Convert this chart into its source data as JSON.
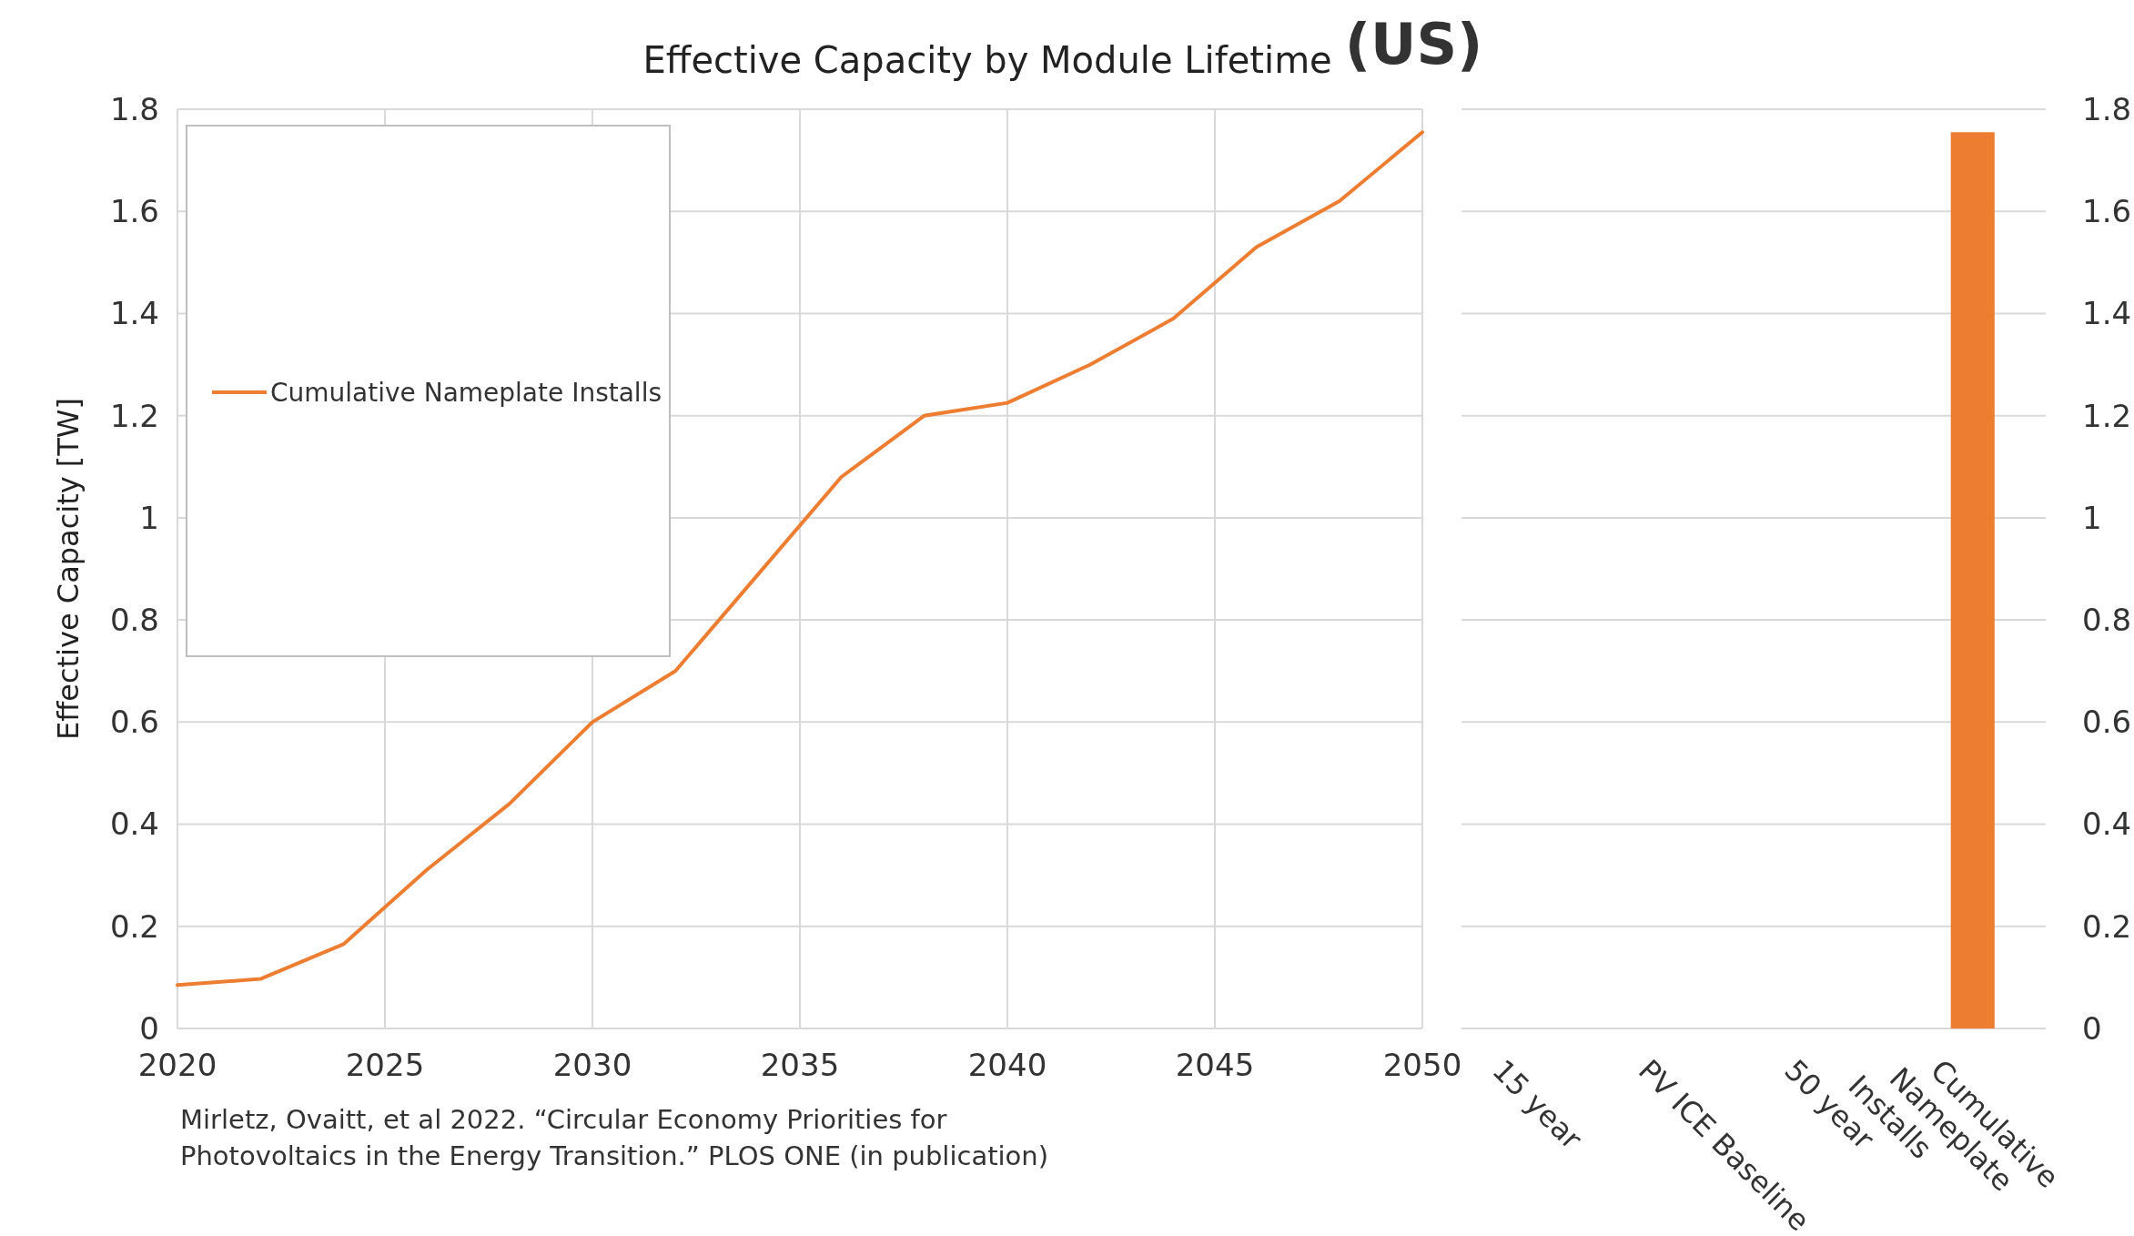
{
  "chart_data": [
    {
      "type": "line",
      "title": "Effective Capacity by Module Lifetime",
      "subtitle": "(US)",
      "ylabel": "Effective Capacity [TW]",
      "x": [
        2020,
        2022,
        2024,
        2026,
        2028,
        2030,
        2032,
        2034,
        2036,
        2038,
        2040,
        2042,
        2044,
        2046,
        2048,
        2050
      ],
      "series": [
        {
          "name": "Cumulative Nameplate Installs",
          "color": "#ed7d31",
          "values": [
            0.085,
            0.097,
            0.165,
            0.31,
            0.44,
            0.6,
            0.7,
            0.89,
            1.08,
            1.2,
            1.225,
            1.3,
            1.39,
            1.53,
            1.62,
            1.755
          ]
        }
      ],
      "xlim": [
        2020,
        2050
      ],
      "xticks": [
        2020,
        2025,
        2030,
        2035,
        2040,
        2045,
        2050
      ],
      "ylim": [
        0,
        1.8
      ],
      "yticks": [
        {
          "value": 0,
          "label": "0"
        },
        {
          "value": 0.2,
          "label": "0.2"
        },
        {
          "value": 0.4,
          "label": "0.4"
        },
        {
          "value": 0.6,
          "label": "0.6"
        },
        {
          "value": 0.8,
          "label": "0.8"
        },
        {
          "value": 1,
          "label": "1"
        },
        {
          "value": 1.2,
          "label": "1.2"
        },
        {
          "value": 1.4,
          "label": "1.4"
        },
        {
          "value": 1.6,
          "label": "1.6"
        },
        {
          "value": 1.8,
          "label": "1.8"
        }
      ],
      "grid": true,
      "legend": "top left",
      "annotations": [
        "Mirletz, Ovaitt, et al 2022. “Circular Economy Priorities for Photovoltaics in the Energy Transition.” PLOS ONE (in publication)"
      ]
    },
    {
      "type": "bar",
      "categories": [
        "15 year",
        "PV ICE Baseline",
        "50 year",
        "Cumulative Nameplate Installs"
      ],
      "values": [
        null,
        null,
        null,
        1.755
      ],
      "color": "#ed7d31",
      "ylim": [
        0,
        1.8
      ],
      "yticks": [
        {
          "value": 0,
          "label": "0"
        },
        {
          "value": 0.2,
          "label": "0.2"
        },
        {
          "value": 0.4,
          "label": "0.4"
        },
        {
          "value": 0.6,
          "label": "0.6"
        },
        {
          "value": 0.8,
          "label": "0.8"
        },
        {
          "value": 1,
          "label": "1"
        },
        {
          "value": 1.2,
          "label": "1.2"
        },
        {
          "value": 1.4,
          "label": "1.4"
        },
        {
          "value": 1.6,
          "label": "1.6"
        },
        {
          "value": 1.8,
          "label": "1.8"
        }
      ],
      "grid": "y"
    }
  ]
}
